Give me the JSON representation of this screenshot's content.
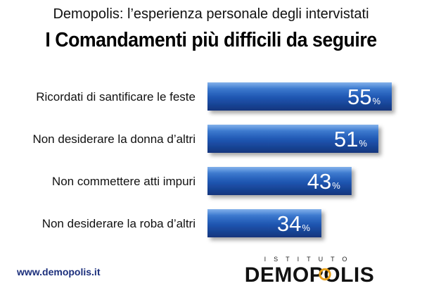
{
  "header": {
    "subtitle": "Demopolis: l’esperienza personale degli intervistati",
    "title": "I Comandamenti più difficili da seguire"
  },
  "chart_data": {
    "type": "bar",
    "orientation": "horizontal",
    "title": "I Comandamenti più difficili da seguire",
    "subtitle": "Demopolis: l’esperienza personale degli intervistati",
    "categories": [
      "Ricordati di santificare le feste",
      "Non desiderare la donna d’altri",
      "Non commettere atti impuri",
      "Non desiderare la roba d’altri"
    ],
    "values": [
      55,
      51,
      43,
      34
    ],
    "value_suffix": "%",
    "xlim": [
      0,
      55
    ],
    "grid": false,
    "legend": "none",
    "bar_color_top": "#3f86df",
    "bar_color_bottom": "#12357d"
  },
  "footer": {
    "url": "www.demopolis.it",
    "logo_top": "ISTITUTO",
    "logo_main": "DEMOPOLIS"
  }
}
